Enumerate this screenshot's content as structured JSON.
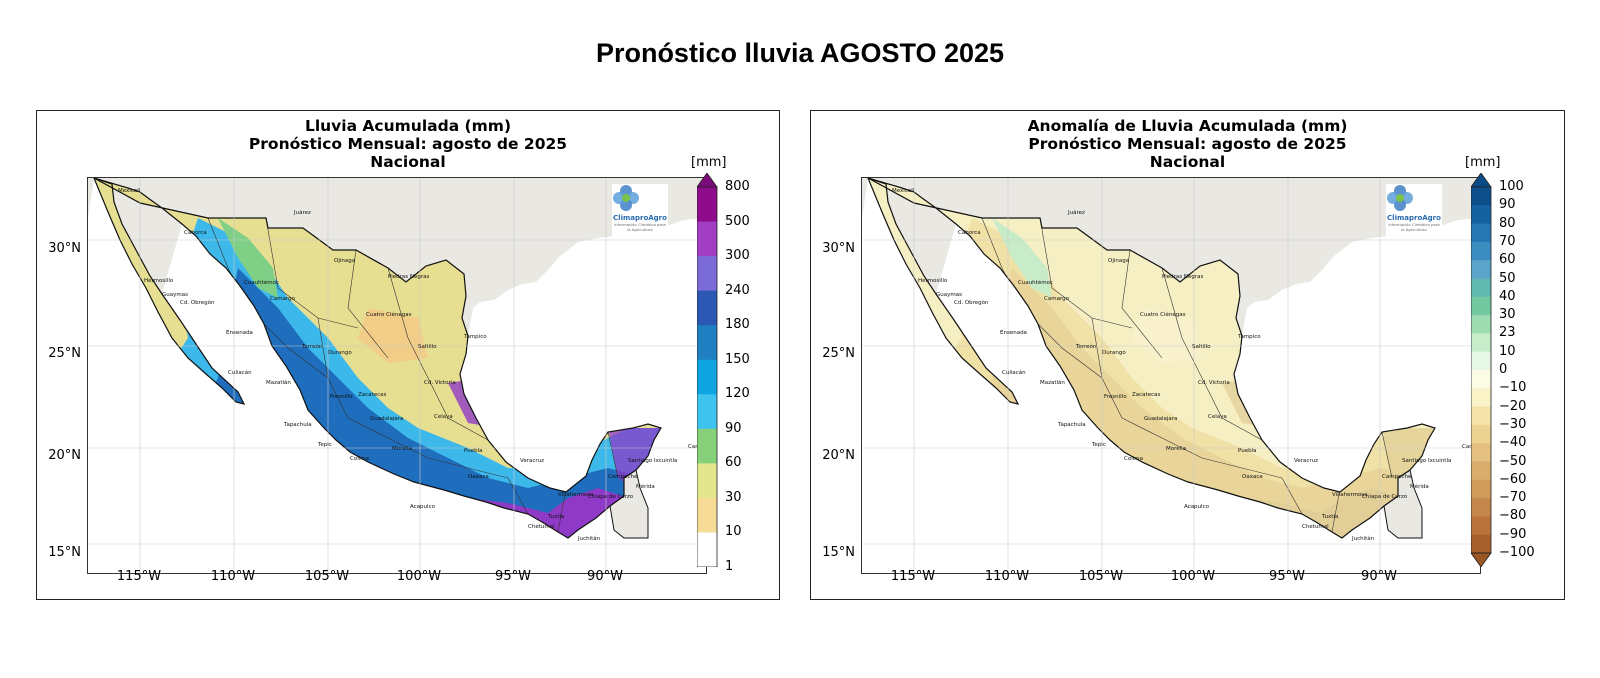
{
  "title": "Pronóstico lluvia AGOSTO 2025",
  "panels": [
    {
      "id": "left",
      "title_lines": [
        "Lluvia Acumulada (mm)",
        "Pronóstico Mensual: agosto de 2025",
        "Nacional"
      ],
      "unit": "[mm]",
      "logo": {
        "name": "ClimaproAgro",
        "tagline": "Información Climática para la Agricultura"
      },
      "y_ticks": [
        "30°N",
        "25°N",
        "20°N",
        "15°N"
      ],
      "x_ticks": [
        "115°W",
        "110°W",
        "105°W",
        "100°W",
        "95°W",
        "90°W"
      ],
      "colorbar": {
        "labels": [
          "800",
          "500",
          "300",
          "240",
          "180",
          "150",
          "120",
          "90",
          "60",
          "30",
          "10",
          "1"
        ],
        "colors": [
          "#8e0c8c",
          "#a13ec4",
          "#7a6bd6",
          "#2a58b3",
          "#1f7fc0",
          "#0ea5e0",
          "#3ec2ee",
          "#86d07a",
          "#e2e58c",
          "#f6dc96",
          "#ffffff"
        ],
        "ends": "max",
        "top_arrow_color": "#7b0a7b"
      },
      "map_palette": {
        "north": "#e6de90",
        "cyan": "#3cb8ea",
        "blue": "#1e6ebd",
        "purple": "#8e3ac6",
        "green": "#7fcf86",
        "tan": "#f2cb86"
      }
    },
    {
      "id": "right",
      "title_lines": [
        "Anomalía de Lluvia Acumulada (mm)",
        "Pronóstico Mensual: agosto de 2025",
        "Nacional"
      ],
      "unit": "[mm]",
      "logo": {
        "name": "ClimaproAgro",
        "tagline": "Información Climática para la Agricultura"
      },
      "y_ticks": [
        "30°N",
        "25°N",
        "20°N",
        "15°N"
      ],
      "x_ticks": [
        "115°W",
        "110°W",
        "105°W",
        "100°W",
        "95°W",
        "90°W"
      ],
      "colorbar": {
        "labels": [
          "100",
          "90",
          "80",
          "70",
          "60",
          "50",
          "40",
          "30",
          "23",
          "10",
          "0",
          "−10",
          "−20",
          "−30",
          "−40",
          "−50",
          "−60",
          "−70",
          "−80",
          "−90",
          "−100"
        ],
        "colors": [
          "#0d4f8b",
          "#1661a0",
          "#2676b3",
          "#3b8cc1",
          "#5aa4c9",
          "#62b9b0",
          "#72c9a1",
          "#9ddbb0",
          "#c6ecca",
          "#e6f7e6",
          "#fbfbe6",
          "#fbf3c8",
          "#f3e3a8",
          "#ecd392",
          "#e4c180",
          "#d9ad6b",
          "#cf9a5a",
          "#c4864a",
          "#b8743c",
          "#a8612c"
        ],
        "ends": "both",
        "top_arrow_color": "#0a4a85",
        "bottom_arrow_color": "#9a5724"
      },
      "map_palette": {
        "north": "#f6efc4",
        "cyan": "#f0e1a6",
        "blue": "#e9d59a",
        "purple": "#e2cf98",
        "green": "#c8ecc8",
        "tan": "#f8f1cc"
      }
    }
  ],
  "map_labels": [
    "Mexicali",
    "Juárez",
    "Caborca",
    "Ojinaga",
    "Piedras Negras",
    "Hermosillo",
    "Guaymas",
    "Cd. Obregón",
    "Cuauhtémoc",
    "Camargo",
    "Cuatro Ciénegas",
    "Ensenada",
    "Torreón",
    "Saltillo",
    "Tampico",
    "Culiacán",
    "Mazatlán",
    "Durango",
    "Zacatecas",
    "Cd. Victoria",
    "Fresnillo",
    "Tepic",
    "Guadalajara",
    "Colima",
    "Morelia",
    "Celaya",
    "Acapulco",
    "Oaxaca",
    "Puebla",
    "Veracruz",
    "Villahermosa",
    "Campeche",
    "Mérida",
    "Chetumal",
    "Juchitán",
    "Tuxtla",
    "Tapachula",
    "Chiapa de Corzo",
    "Santiago Ixcuintla",
    "Cancún"
  ]
}
